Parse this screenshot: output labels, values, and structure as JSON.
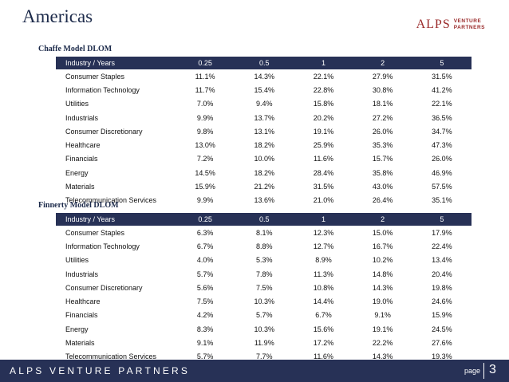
{
  "title": "Americas",
  "logo": {
    "big": "ALPS",
    "line1": "VENTURE",
    "line2": "PARTNERS"
  },
  "headers": [
    "Industry  / Years",
    "0.25",
    "0.5",
    "1",
    "2",
    "5"
  ],
  "tables": [
    {
      "label": "Chaffe Model DLOM",
      "rows": [
        [
          "Consumer Staples",
          "11.1%",
          "14.3%",
          "22.1%",
          "27.9%",
          "31.5%"
        ],
        [
          "Information Technology",
          "11.7%",
          "15.4%",
          "22.8%",
          "30.8%",
          "41.2%"
        ],
        [
          "Utilities",
          "7.0%",
          "9.4%",
          "15.8%",
          "18.1%",
          "22.1%"
        ],
        [
          "Industrials",
          "9.9%",
          "13.7%",
          "20.2%",
          "27.2%",
          "36.5%"
        ],
        [
          "Consumer Discretionary",
          "9.8%",
          "13.1%",
          "19.1%",
          "26.0%",
          "34.7%"
        ],
        [
          "Healthcare",
          "13.0%",
          "18.2%",
          "25.9%",
          "35.3%",
          "47.3%"
        ],
        [
          "Financials",
          "7.2%",
          "10.0%",
          "11.6%",
          "15.7%",
          "26.0%"
        ],
        [
          "Energy",
          "14.5%",
          "18.2%",
          "28.4%",
          "35.8%",
          "46.9%"
        ],
        [
          "Materials",
          "15.9%",
          "21.2%",
          "31.5%",
          "43.0%",
          "57.5%"
        ],
        [
          "Telecommunication Services",
          "9.9%",
          "13.6%",
          "21.0%",
          "26.4%",
          "35.1%"
        ]
      ]
    },
    {
      "label": "Finnerty Model DLOM",
      "rows": [
        [
          "Consumer Staples",
          "6.3%",
          "8.1%",
          "12.3%",
          "15.0%",
          "17.9%"
        ],
        [
          "Information Technology",
          "6.7%",
          "8.8%",
          "12.7%",
          "16.7%",
          "22.4%"
        ],
        [
          "Utilities",
          "4.0%",
          "5.3%",
          "8.9%",
          "10.2%",
          "13.4%"
        ],
        [
          "Industrials",
          "5.7%",
          "7.8%",
          "11.3%",
          "14.8%",
          "20.4%"
        ],
        [
          "Consumer Discretionary",
          "5.6%",
          "7.5%",
          "10.8%",
          "14.3%",
          "19.8%"
        ],
        [
          "Healthcare",
          "7.5%",
          "10.3%",
          "14.4%",
          "19.0%",
          "24.6%"
        ],
        [
          "Financials",
          "4.2%",
          "5.7%",
          "6.7%",
          "9.1%",
          "15.9%"
        ],
        [
          "Energy",
          "8.3%",
          "10.3%",
          "15.6%",
          "19.1%",
          "24.5%"
        ],
        [
          "Materials",
          "9.1%",
          "11.9%",
          "17.2%",
          "22.2%",
          "27.6%"
        ],
        [
          "Telecommunication Services",
          "5.7%",
          "7.7%",
          "11.6%",
          "14.3%",
          "19.3%"
        ]
      ]
    }
  ],
  "footer": {
    "brand": "ALPS VENTURE PARTNERS",
    "page_label": "page",
    "page_number": "3"
  }
}
